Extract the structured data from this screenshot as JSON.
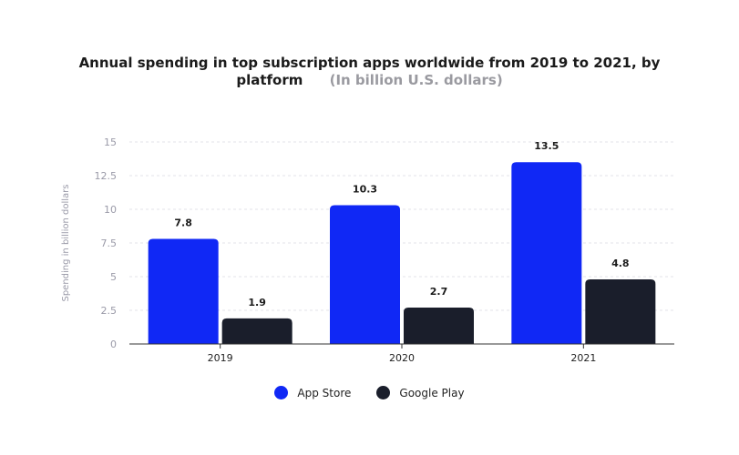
{
  "chart_data": {
    "type": "bar",
    "title": "Annual spending in top subscription apps worldwide from 2019 to 2021, by platform",
    "subtitle": "(In billion U.S. dollars)",
    "xlabel": "",
    "ylabel": "Spending in billion dollars",
    "categories": [
      "2019",
      "2020",
      "2021"
    ],
    "series": [
      {
        "name": "App Store",
        "values": [
          7.8,
          10.3,
          13.5
        ],
        "color": "#1028f5"
      },
      {
        "name": "Google Play",
        "values": [
          1.9,
          2.7,
          4.8
        ],
        "color": "#1a1e2b"
      }
    ],
    "ylim": [
      0,
      15
    ],
    "yticks": [
      "0",
      "2.5",
      "5",
      "7.5",
      "10",
      "12.5",
      "15"
    ],
    "data_labels": [
      [
        "7.8",
        "10.3",
        "13.5"
      ],
      [
        "1.9",
        "2.7",
        "4.8"
      ]
    ],
    "grid": true,
    "legend_position": "bottom"
  }
}
